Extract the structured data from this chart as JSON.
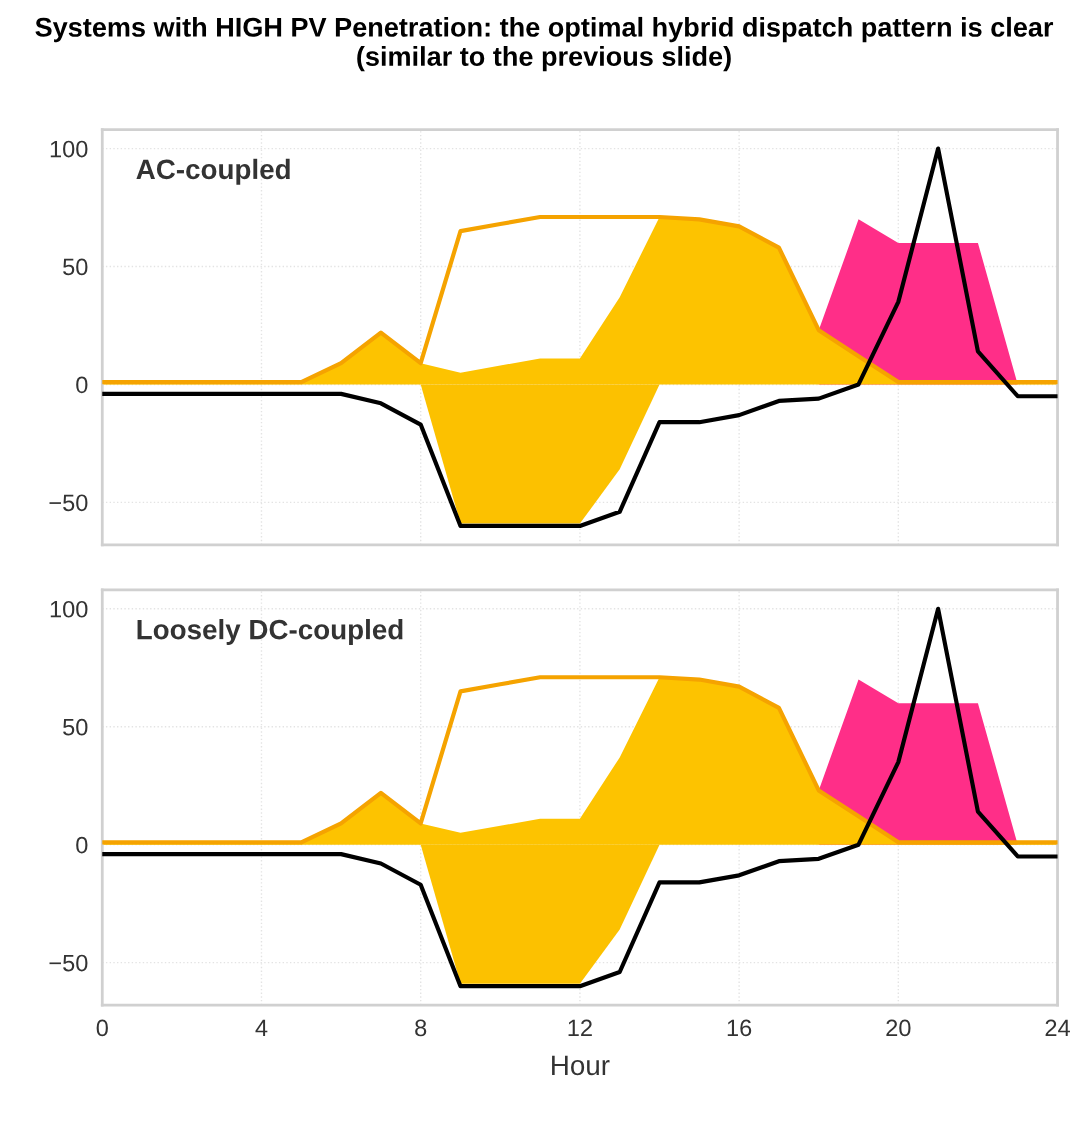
{
  "chart_data": [
    {
      "type": "area",
      "title": "Systems with HIGH PV Penetration: the optimal hybrid dispatch pattern is clear (similar to the previous slide)",
      "annotations": [
        "AC-coupled"
      ],
      "grid": true,
      "tick_labels": "y",
      "x": [
        0,
        1,
        2,
        3,
        4,
        5,
        6,
        7,
        8,
        9,
        10,
        11,
        12,
        13,
        14,
        15,
        16,
        17,
        18,
        19,
        20,
        21,
        22,
        23,
        24
      ],
      "xlim": [
        0,
        24
      ],
      "xticks": [
        0,
        4,
        8,
        12,
        16,
        20,
        24
      ],
      "ylim": [
        -68,
        108
      ],
      "yticks": [
        100,
        50,
        0,
        {
          "value": -50,
          "label": "−50"
        }
      ],
      "series": [
        {
          "color": "#ff2e88",
          "values": [
            null,
            null,
            null,
            null,
            null,
            null,
            null,
            null,
            null,
            null,
            null,
            null,
            null,
            null,
            null,
            null,
            null,
            null,
            23,
            70,
            60,
            60,
            60,
            0,
            null
          ]
        },
        {
          "color": "#fdc300",
          "values": [
            1,
            1,
            1,
            1,
            1,
            1,
            9,
            22,
            9,
            5,
            8,
            11,
            11,
            37,
            71,
            70,
            67,
            58,
            23,
            12,
            1,
            1,
            1,
            1,
            1
          ]
        },
        {
          "color": "#fcc100",
          "values": [
            null,
            null,
            null,
            null,
            null,
            null,
            null,
            null,
            0,
            -59,
            -59,
            -59,
            -59,
            -36,
            0,
            null,
            null,
            null,
            null,
            null,
            null,
            null,
            null,
            null,
            null
          ]
        },
        {
          "type": "line",
          "color": "#f5a300",
          "values": [
            1,
            1,
            1,
            1,
            1,
            1,
            9,
            22,
            9,
            65,
            68,
            71,
            71,
            71,
            71,
            70,
            67,
            58,
            23,
            12,
            1,
            1,
            1,
            1,
            1
          ]
        },
        {
          "type": "line",
          "color": "#000000",
          "values": [
            -4,
            -4,
            -4,
            -4,
            -4,
            -4,
            -4,
            -8,
            -17,
            -60,
            -60,
            -60,
            -60,
            -54,
            -16,
            -16,
            -13,
            -7,
            -6,
            0,
            35,
            100,
            14,
            -5,
            -5
          ]
        }
      ]
    },
    {
      "type": "area",
      "xlabel": "Hour",
      "annotations": [
        "Loosely DC-coupled"
      ],
      "grid": true,
      "x": [
        0,
        1,
        2,
        3,
        4,
        5,
        6,
        7,
        8,
        9,
        10,
        11,
        12,
        13,
        14,
        15,
        16,
        17,
        18,
        19,
        20,
        21,
        22,
        23,
        24
      ],
      "xlim": [
        0,
        24
      ],
      "xticks": [
        0,
        4,
        8,
        12,
        16,
        20,
        24
      ],
      "ylim": [
        -68,
        108
      ],
      "yticks": [
        100,
        50,
        0,
        {
          "value": -50,
          "label": "−50"
        }
      ],
      "series": [
        {
          "color": "#ff2e88",
          "values": [
            null,
            null,
            null,
            null,
            null,
            null,
            null,
            null,
            null,
            null,
            null,
            null,
            null,
            null,
            null,
            null,
            null,
            null,
            23,
            70,
            60,
            60,
            60,
            0,
            null
          ]
        },
        {
          "color": "#fdc300",
          "values": [
            1,
            1,
            1,
            1,
            1,
            1,
            9,
            22,
            9,
            5,
            8,
            11,
            11,
            37,
            71,
            70,
            67,
            58,
            23,
            12,
            1,
            1,
            1,
            1,
            1
          ]
        },
        {
          "color": "#fcc100",
          "values": [
            null,
            null,
            null,
            null,
            null,
            null,
            null,
            null,
            0,
            -59,
            -59,
            -59,
            -59,
            -36,
            0,
            null,
            null,
            null,
            null,
            null,
            null,
            null,
            null,
            null,
            null
          ]
        },
        {
          "type": "line",
          "color": "#f5a300",
          "values": [
            1,
            1,
            1,
            1,
            1,
            1,
            9,
            22,
            9,
            65,
            68,
            71,
            71,
            71,
            71,
            70,
            67,
            58,
            23,
            12,
            1,
            1,
            1,
            1,
            1
          ]
        },
        {
          "type": "line",
          "color": "#000000",
          "values": [
            -4,
            -4,
            -4,
            -4,
            -4,
            -4,
            -4,
            -8,
            -17,
            -60,
            -60,
            -60,
            -60,
            -54,
            -16,
            -16,
            -13,
            -7,
            -6,
            0,
            35,
            100,
            14,
            -5,
            -5
          ]
        }
      ]
    }
  ]
}
